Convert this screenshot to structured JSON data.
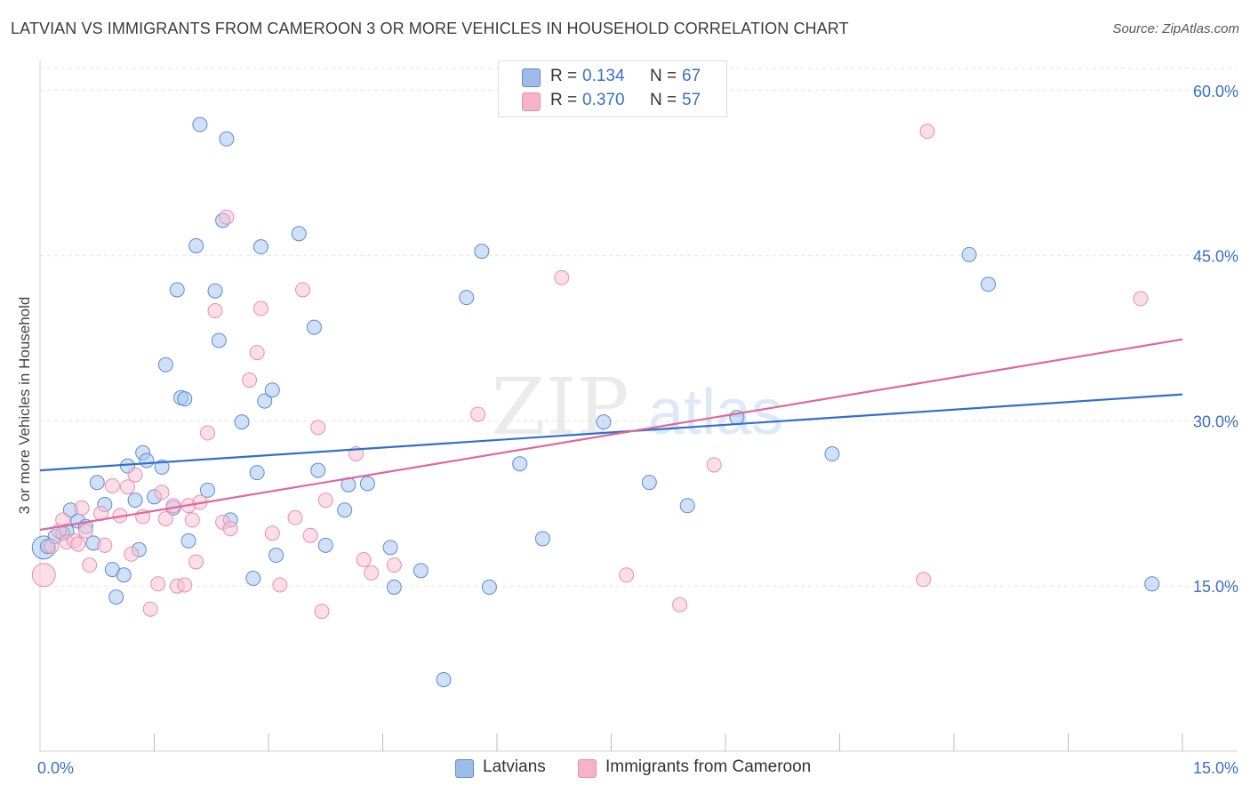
{
  "title": "LATVIAN VS IMMIGRANTS FROM CAMEROON 3 OR MORE VEHICLES IN HOUSEHOLD CORRELATION CHART",
  "source": "Source: ZipAtlas.com",
  "watermark": {
    "zip": "ZIP",
    "atlas": "atlas"
  },
  "legend": {
    "rows": [
      {
        "r_label": "R =",
        "r_value": "0.134",
        "n_label": "N =",
        "n_value": "67",
        "color": "#9dbce8"
      },
      {
        "r_label": "R =",
        "r_value": "0.370",
        "n_label": "N =",
        "n_value": "57",
        "color": "#f5b3c8"
      }
    ]
  },
  "bottom_legend": [
    {
      "label": "Latvians",
      "color": "#9dbce8"
    },
    {
      "label": "Immigrants from Cameroon",
      "color": "#f5b3c8"
    }
  ],
  "colors": {
    "latvian_fill": "#aac6ee",
    "latvian_stroke": "#5b8bd6",
    "latvian_line": "#2f6fcc",
    "cameroon_fill": "#f7c2d3",
    "cameroon_stroke": "#e590ad",
    "cameroon_line": "#e0679a",
    "axis_tick_text": "#3b6fc4",
    "grid": "#e3e3e3"
  },
  "chart_data": {
    "type": "scatter",
    "title": "LATVIAN VS IMMIGRANTS FROM CAMEROON 3 OR MORE VEHICLES IN HOUSEHOLD CORRELATION CHART",
    "xlabel": "",
    "ylabel": "3 or more Vehicles in Household",
    "xlim": [
      0,
      15
    ],
    "ylim": [
      0,
      62
    ],
    "x_ticks": [
      {
        "value": 0,
        "label": "0.0%"
      },
      {
        "value": 15,
        "label": "15.0%"
      }
    ],
    "x_minor_ticks": [
      1.5,
      3,
      4.5,
      6,
      7.5,
      9,
      10.5,
      12,
      13.5
    ],
    "y_ticks": [
      {
        "value": 15,
        "label": "15.0%"
      },
      {
        "value": 30,
        "label": "30.0%"
      },
      {
        "value": 45,
        "label": "45.0%"
      },
      {
        "value": 60,
        "label": "60.0%"
      }
    ],
    "grid": true,
    "legend_position": "top-center",
    "series": [
      {
        "name": "Latvians",
        "trend": {
          "x": [
            0,
            15
          ],
          "y": [
            25.5,
            32.4
          ]
        },
        "points": [
          {
            "x": 0.05,
            "y": 18.5,
            "big": true
          },
          {
            "x": 0.1,
            "y": 18.6
          },
          {
            "x": 0.2,
            "y": 19.5
          },
          {
            "x": 0.3,
            "y": 19.8
          },
          {
            "x": 0.35,
            "y": 20.0
          },
          {
            "x": 0.4,
            "y": 21.9
          },
          {
            "x": 0.5,
            "y": 20.9
          },
          {
            "x": 0.6,
            "y": 20.4
          },
          {
            "x": 0.7,
            "y": 18.9
          },
          {
            "x": 0.75,
            "y": 24.4
          },
          {
            "x": 0.85,
            "y": 22.4
          },
          {
            "x": 0.95,
            "y": 16.5
          },
          {
            "x": 1.0,
            "y": 14.0
          },
          {
            "x": 1.1,
            "y": 16.0
          },
          {
            "x": 1.15,
            "y": 25.9
          },
          {
            "x": 1.25,
            "y": 22.8
          },
          {
            "x": 1.3,
            "y": 18.3
          },
          {
            "x": 1.35,
            "y": 27.1
          },
          {
            "x": 1.4,
            "y": 26.4
          },
          {
            "x": 1.5,
            "y": 23.1
          },
          {
            "x": 1.6,
            "y": 25.8
          },
          {
            "x": 1.65,
            "y": 35.1
          },
          {
            "x": 1.75,
            "y": 22.1
          },
          {
            "x": 1.8,
            "y": 41.9
          },
          {
            "x": 1.85,
            "y": 32.1
          },
          {
            "x": 1.9,
            "y": 32.0
          },
          {
            "x": 1.95,
            "y": 19.1
          },
          {
            "x": 2.05,
            "y": 45.9
          },
          {
            "x": 2.1,
            "y": 56.9
          },
          {
            "x": 2.2,
            "y": 23.7
          },
          {
            "x": 2.3,
            "y": 41.8
          },
          {
            "x": 2.35,
            "y": 37.3
          },
          {
            "x": 2.4,
            "y": 48.2
          },
          {
            "x": 2.45,
            "y": 55.6
          },
          {
            "x": 2.5,
            "y": 21.0
          },
          {
            "x": 2.65,
            "y": 29.9
          },
          {
            "x": 2.8,
            "y": 15.7
          },
          {
            "x": 2.85,
            "y": 25.3
          },
          {
            "x": 2.9,
            "y": 45.8
          },
          {
            "x": 2.95,
            "y": 31.8
          },
          {
            "x": 3.05,
            "y": 32.8
          },
          {
            "x": 3.1,
            "y": 17.8
          },
          {
            "x": 3.4,
            "y": 47.0
          },
          {
            "x": 3.6,
            "y": 38.5
          },
          {
            "x": 3.65,
            "y": 25.5
          },
          {
            "x": 3.75,
            "y": 18.7
          },
          {
            "x": 4.0,
            "y": 21.9
          },
          {
            "x": 4.05,
            "y": 24.2
          },
          {
            "x": 4.3,
            "y": 24.3
          },
          {
            "x": 4.6,
            "y": 18.5
          },
          {
            "x": 4.65,
            "y": 14.9
          },
          {
            "x": 5.0,
            "y": 16.4
          },
          {
            "x": 5.3,
            "y": 6.5
          },
          {
            "x": 5.6,
            "y": 41.2
          },
          {
            "x": 5.8,
            "y": 45.4
          },
          {
            "x": 5.9,
            "y": 14.9
          },
          {
            "x": 6.3,
            "y": 26.1
          },
          {
            "x": 6.6,
            "y": 19.3
          },
          {
            "x": 7.4,
            "y": 29.9
          },
          {
            "x": 8.0,
            "y": 24.4
          },
          {
            "x": 8.5,
            "y": 22.3
          },
          {
            "x": 9.15,
            "y": 30.3
          },
          {
            "x": 10.4,
            "y": 27.0
          },
          {
            "x": 12.2,
            "y": 45.1
          },
          {
            "x": 12.45,
            "y": 42.4
          },
          {
            "x": 14.6,
            "y": 15.2
          }
        ]
      },
      {
        "name": "Immigrants from Cameroon",
        "trend": {
          "x": [
            0,
            15
          ],
          "y": [
            20.1,
            37.4
          ]
        },
        "points": [
          {
            "x": 0.05,
            "y": 16.0,
            "big": true
          },
          {
            "x": 0.15,
            "y": 18.6
          },
          {
            "x": 0.25,
            "y": 20.0
          },
          {
            "x": 0.3,
            "y": 21.0
          },
          {
            "x": 0.35,
            "y": 19.0
          },
          {
            "x": 0.45,
            "y": 19.1
          },
          {
            "x": 0.5,
            "y": 18.8
          },
          {
            "x": 0.55,
            "y": 22.1
          },
          {
            "x": 0.6,
            "y": 20.0
          },
          {
            "x": 0.65,
            "y": 16.9
          },
          {
            "x": 0.8,
            "y": 21.6
          },
          {
            "x": 0.85,
            "y": 18.7
          },
          {
            "x": 0.95,
            "y": 24.1
          },
          {
            "x": 1.05,
            "y": 21.4
          },
          {
            "x": 1.15,
            "y": 24.0
          },
          {
            "x": 1.2,
            "y": 17.9
          },
          {
            "x": 1.25,
            "y": 25.1
          },
          {
            "x": 1.35,
            "y": 21.3
          },
          {
            "x": 1.45,
            "y": 12.9
          },
          {
            "x": 1.55,
            "y": 15.2
          },
          {
            "x": 1.6,
            "y": 23.5
          },
          {
            "x": 1.65,
            "y": 21.1
          },
          {
            "x": 1.75,
            "y": 22.3
          },
          {
            "x": 1.8,
            "y": 15.0
          },
          {
            "x": 1.9,
            "y": 15.1
          },
          {
            "x": 1.95,
            "y": 22.3
          },
          {
            "x": 2.0,
            "y": 21.0
          },
          {
            "x": 2.05,
            "y": 17.2
          },
          {
            "x": 2.1,
            "y": 22.6
          },
          {
            "x": 2.2,
            "y": 28.9
          },
          {
            "x": 2.3,
            "y": 40.0
          },
          {
            "x": 2.4,
            "y": 20.8
          },
          {
            "x": 2.45,
            "y": 48.5
          },
          {
            "x": 2.5,
            "y": 20.2
          },
          {
            "x": 2.75,
            "y": 33.7
          },
          {
            "x": 2.85,
            "y": 36.2
          },
          {
            "x": 2.9,
            "y": 40.2
          },
          {
            "x": 3.05,
            "y": 19.8
          },
          {
            "x": 3.15,
            "y": 15.1
          },
          {
            "x": 3.35,
            "y": 21.2
          },
          {
            "x": 3.45,
            "y": 41.9
          },
          {
            "x": 3.55,
            "y": 19.6
          },
          {
            "x": 3.65,
            "y": 29.4
          },
          {
            "x": 3.7,
            "y": 12.7
          },
          {
            "x": 3.75,
            "y": 22.8
          },
          {
            "x": 4.15,
            "y": 27.0
          },
          {
            "x": 4.25,
            "y": 17.4
          },
          {
            "x": 4.35,
            "y": 16.2
          },
          {
            "x": 4.65,
            "y": 16.9
          },
          {
            "x": 5.75,
            "y": 30.6
          },
          {
            "x": 6.85,
            "y": 43.0
          },
          {
            "x": 7.7,
            "y": 16.0
          },
          {
            "x": 8.4,
            "y": 13.3
          },
          {
            "x": 8.85,
            "y": 26.0
          },
          {
            "x": 11.6,
            "y": 15.6
          },
          {
            "x": 11.65,
            "y": 56.3
          },
          {
            "x": 14.45,
            "y": 41.1
          }
        ]
      }
    ]
  }
}
